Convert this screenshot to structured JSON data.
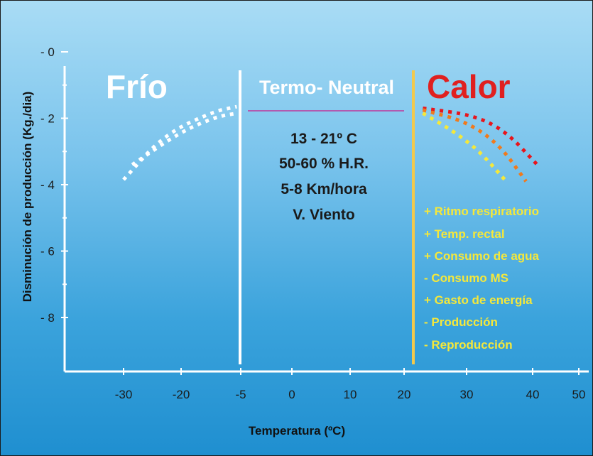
{
  "chart_data": {
    "type": "line",
    "xlabel": "Temperatura (ºC)",
    "ylabel": "Disminución de producción (Kg./dia)",
    "x_ticks": [
      "-30",
      "-20",
      "-5",
      "0",
      "10",
      "20",
      "30",
      "40",
      "50"
    ],
    "y_ticks": [
      "- 0",
      "- 2",
      "- 4",
      "- 6",
      "- 8"
    ],
    "ylim": [
      0,
      -9.5
    ],
    "zones": {
      "cold": {
        "label": "Frío",
        "color": "#ffffff"
      },
      "neutral": {
        "label": "Termo- Neutral",
        "color": "#ffffff"
      },
      "hot": {
        "label": "Calor",
        "color": "#e0201f"
      }
    },
    "neutral_conditions": [
      "13 - 21º C",
      "50-60 % H.R.",
      "5-8 Km/hora",
      "V. Viento"
    ],
    "heat_effects": [
      "+ Ritmo respiratorio",
      "+ Temp. rectal",
      "+ Consumo de agua",
      "- Consumo MS",
      "+ Gasto de energía",
      "- Producción",
      "- Reproducción"
    ],
    "series": [
      {
        "zone": "cold",
        "color": "#ffffff",
        "points": [
          [
            -31.5,
            -3.85
          ],
          [
            -23,
            -2.5
          ],
          [
            -12,
            -1.8
          ],
          [
            -6,
            -1.65
          ]
        ]
      },
      {
        "zone": "cold",
        "color": "#ffffff",
        "points": [
          [
            -28.5,
            -3.4
          ],
          [
            -20,
            -2.4
          ],
          [
            -11,
            -1.95
          ],
          [
            -6,
            -1.85
          ]
        ]
      },
      {
        "zone": "hot",
        "color": "#e8151c",
        "points": [
          [
            23,
            -1.7
          ],
          [
            31,
            -1.9
          ],
          [
            36,
            -2.4
          ],
          [
            41,
            -3.4
          ]
        ]
      },
      {
        "zone": "hot",
        "color": "#f07a1c",
        "points": [
          [
            23,
            -1.75
          ],
          [
            30,
            -2.1
          ],
          [
            35,
            -2.8
          ],
          [
            39,
            -3.9
          ]
        ]
      },
      {
        "zone": "hot",
        "color": "#f5e83a",
        "points": [
          [
            23,
            -1.85
          ],
          [
            28,
            -2.4
          ],
          [
            32,
            -3.0
          ],
          [
            36,
            -3.9
          ]
        ]
      }
    ],
    "colors": {
      "neutral_divider": "#f2c94c",
      "title_rule": "#c0359a",
      "axis": "#ffffff"
    }
  }
}
